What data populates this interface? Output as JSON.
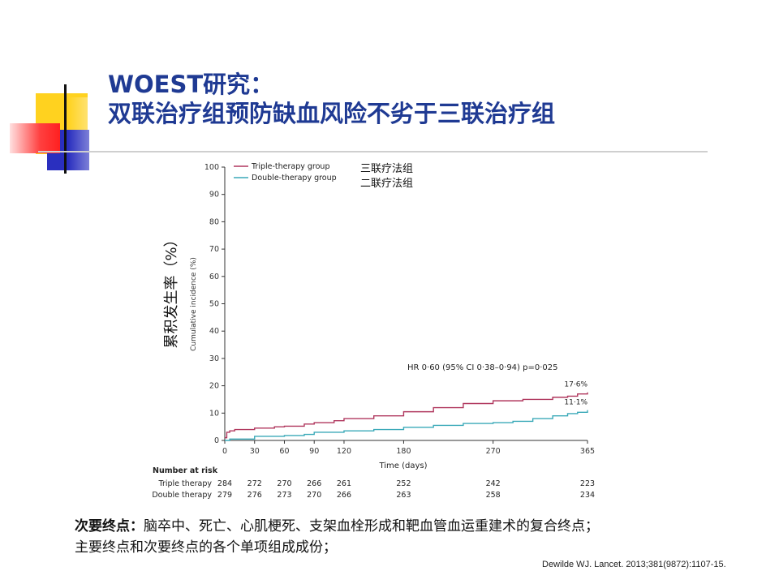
{
  "slide": {
    "title_line1": "WOEST研究：",
    "title_line2": "双联治疗组预防缺血风险不劣于三联治疗组",
    "note_label": "次要终点：",
    "note_text": "脑卒中、死亡、心肌梗死、支架血栓形成和靶血管血运重建术的复合终点；",
    "note_line2": "主要终点和次要终点的各个单项组成成份；",
    "citation": "Dewilde WJ. Lancet. 2013;381(9872):1107-15.",
    "legend_cn": [
      "三联疗法组",
      "二联疗法组"
    ],
    "ylabel_cn": "累积发生率（%）"
  },
  "colors": {
    "title": "#1f3a93",
    "triple": "#b0375e",
    "double": "#3aa9b8",
    "deco_yellow": "#ffd21f",
    "deco_red": "#ff2a2a",
    "deco_blue": "#2a2fbf"
  },
  "chart_data": {
    "type": "line",
    "xlabel": "Time (days)",
    "ylabel": "Cumulative incidence (%)",
    "xticks": [
      0,
      30,
      60,
      90,
      120,
      180,
      270,
      365
    ],
    "yticks": [
      0,
      10,
      20,
      30,
      40,
      50,
      60,
      70,
      80,
      90,
      100
    ],
    "xlim": [
      0,
      365
    ],
    "ylim": [
      0,
      100
    ],
    "legend_position": "top-left",
    "annotation": "HR 0·60 (95% CI 0·38–0·94) p=0·025",
    "series": [
      {
        "name": "Triple-therapy group",
        "end_label": "17·6%",
        "x": [
          0,
          2,
          5,
          10,
          30,
          50,
          60,
          80,
          90,
          110,
          120,
          150,
          180,
          210,
          240,
          270,
          300,
          330,
          345,
          355,
          365
        ],
        "y": [
          1,
          3,
          3.5,
          4,
          4.5,
          5,
          5.2,
          6,
          6.5,
          7.2,
          8,
          9,
          10.5,
          12,
          13.5,
          14.5,
          15,
          15.8,
          16.2,
          17,
          17.6
        ]
      },
      {
        "name": "Double-therapy group",
        "end_label": "11·1%",
        "x": [
          0,
          5,
          20,
          30,
          60,
          80,
          90,
          120,
          150,
          180,
          210,
          240,
          270,
          290,
          310,
          330,
          345,
          355,
          365
        ],
        "y": [
          0,
          0.5,
          0.5,
          1.5,
          1.8,
          2.2,
          3,
          3.5,
          4,
          4.8,
          5.5,
          6.2,
          6.5,
          7,
          8,
          9,
          9.8,
          10.3,
          11.1
        ]
      }
    ],
    "number_at_risk": {
      "title": "Number at risk",
      "days": [
        0,
        30,
        60,
        90,
        120,
        180,
        270,
        365
      ],
      "rows": [
        {
          "label": "Triple therapy",
          "values": [
            284,
            272,
            270,
            266,
            261,
            252,
            242,
            223
          ]
        },
        {
          "label": "Double therapy",
          "values": [
            279,
            276,
            273,
            270,
            266,
            263,
            258,
            234
          ]
        }
      ]
    }
  }
}
